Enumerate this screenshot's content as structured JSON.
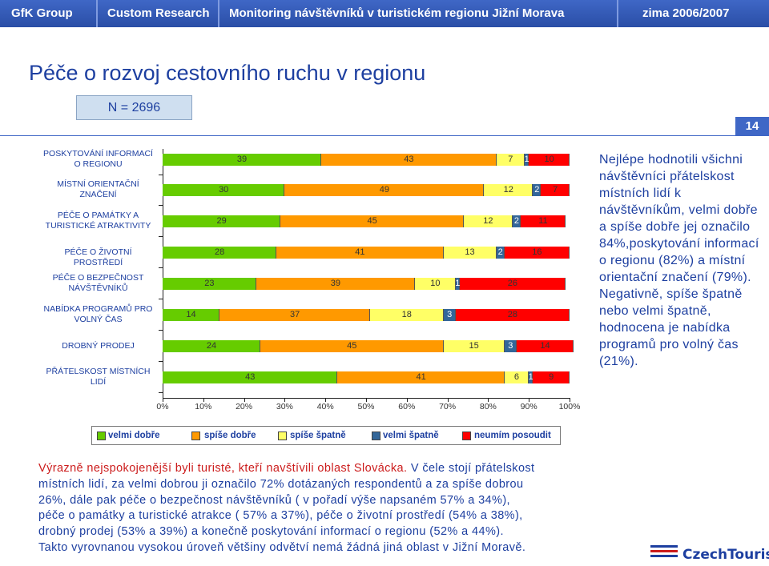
{
  "header": {
    "company": "GfK Group",
    "division": "Custom Research",
    "project": "Monitoring návštěvníků v turistickém regionu Jižní Morava",
    "period": "zima 2006/2007"
  },
  "title": "Péče o rozvoj cestovního ruchu v regionu",
  "sample": "N = 2696",
  "page_number": "14",
  "colors": {
    "velmi_dobre": "#ff9900",
    "spise_dobre": "#ffff66",
    "spise_spatne": "#336699",
    "velmi_spatne": "#ff0000",
    "neumim": "#66cc00"
  },
  "chart_data": {
    "type": "bar",
    "stacked": true,
    "orientation": "horizontal",
    "percent_axis": true,
    "xlim": [
      0,
      100
    ],
    "xticks": [
      "0%",
      "10%",
      "20%",
      "30%",
      "40%",
      "50%",
      "60%",
      "70%",
      "80%",
      "90%",
      "100%"
    ],
    "categories": [
      "POSKYTOVÁNÍ INFORMACÍ O REGIONU",
      "MÍSTNÍ ORIENTAČNÍ ZNAČENÍ",
      "PÉČE O PAMÁTKY A TURISTICKÉ ATRAKTIVITY",
      "PÉČE O ŽIVOTNÍ PROSTŘEDÍ",
      "PÉČE O BEZPEČNOST NÁVŠTĚVNÍKŮ",
      "NABÍDKA PROGRAMŮ PRO VOLNÝ ČAS",
      "DROBNÝ PRODEJ",
      "PŘÁTELSKOST MÍSTNÍCH LIDÍ"
    ],
    "series": [
      {
        "name": "velmi dobře",
        "color": "#66cc00",
        "values": [
          39,
          30,
          29,
          28,
          23,
          14,
          24,
          43
        ]
      },
      {
        "name": "spíše dobře",
        "color": "#ff9900",
        "values": [
          43,
          49,
          45,
          41,
          39,
          37,
          45,
          41
        ]
      },
      {
        "name": "spíše špatně",
        "color": "#ffff66",
        "values": [
          7,
          12,
          12,
          13,
          10,
          18,
          15,
          6
        ]
      },
      {
        "name": "velmi špatně",
        "color": "#336699",
        "values": [
          1,
          2,
          2,
          2,
          1,
          3,
          3,
          1
        ]
      },
      {
        "name": "neumím posoudit",
        "color": "#ff0000",
        "values": [
          10,
          7,
          11,
          16,
          26,
          28,
          14,
          9
        ]
      }
    ],
    "legend_position": "bottom",
    "grid": false
  },
  "side_text": "Nejlépe hodnotili všichni návštěvníci přátelskost místních lidí k návštěvníkům, velmi dobře a spíše dobře jej označilo 84%,poskytování informací o regionu (82%) a místní orientační značení (79%). Negativně, spíše špatně nebo velmi špatně, hodnocena je nabídka programů pro volný čas (21%).",
  "bottom_text": {
    "lead": "Výrazně nejspokojenější byli turisté, kteří navštívili oblast Slovácka.",
    "line1_rest": " V čele stojí přátelskost",
    "line2": "místních lidí, za velmi dobrou ji označilo 72% dotázaných respondentů a za spíše dobrou",
    "line3": "26%, dále pak péče o bezpečnost návštěvníků ( v pořadí výše napsaném 57% a 34%),",
    "line4": "péče o památky a turistické atrakce ( 57% a 37%), péče o životní prostředí (54% a 38%),",
    "line5": "drobný prodej (53% a 39%) a konečně poskytování informací o regionu (52% a 44%).",
    "line6": "Takto vyrovnanou vysokou úroveň většiny odvětví nemá žádná jiná oblast v Jižní Moravě."
  },
  "logo_text": "CzechTourism"
}
